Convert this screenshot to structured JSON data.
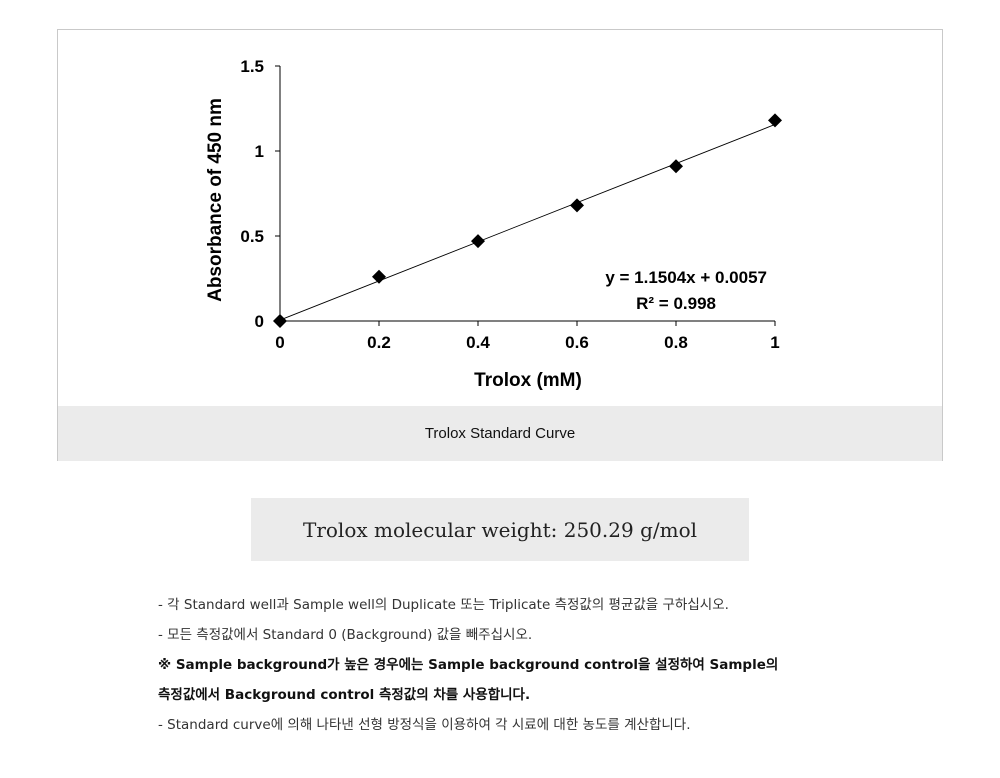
{
  "figure": {
    "caption": "Trolox Standard Curve"
  },
  "chart_data": {
    "type": "scatter",
    "xlabel": "Trolox (mM)",
    "ylabel": "Absorbance of 450 nm",
    "xlim": [
      0,
      1
    ],
    "ylim": [
      0,
      1.5
    ],
    "x_ticks": [
      "0",
      "0.2",
      "0.4",
      "0.6",
      "0.8",
      "1"
    ],
    "y_ticks": [
      "0",
      "0.5",
      "1",
      "1.5"
    ],
    "grid": false,
    "marker": "diamond",
    "x": [
      0,
      0.2,
      0.4,
      0.6,
      0.8,
      1.0
    ],
    "y": [
      0.0,
      0.26,
      0.47,
      0.68,
      0.91,
      1.18
    ],
    "trendline": {
      "slope": 1.1504,
      "intercept": 0.0057
    },
    "equation_label": "y = 1.1504x + 0.0057",
    "r2_label": "R² = 0.998"
  },
  "molecular_weight": "Trolox molecular weight: 250.29 g/mol",
  "notes": [
    {
      "text": "- 각 Standard well과 Sample well의 Duplicate 또는 Triplicate 측정값의 평균값을 구하십시오.",
      "bold": false
    },
    {
      "text": "- 모든 측정값에서 Standard 0 (Background) 값을 빼주십시오.",
      "bold": false
    },
    {
      "text": "※ Sample background가 높은 경우에는 Sample background control을 설정하여 Sample의",
      "bold": true
    },
    {
      "text": "측정값에서 Background control 측정값의 차를 사용합니다.",
      "bold": true
    },
    {
      "text": "- Standard curve에 의해 나타낸 선형 방정식을 이용하여 각 시료에 대한 농도를 계산합니다.",
      "bold": false
    }
  ]
}
